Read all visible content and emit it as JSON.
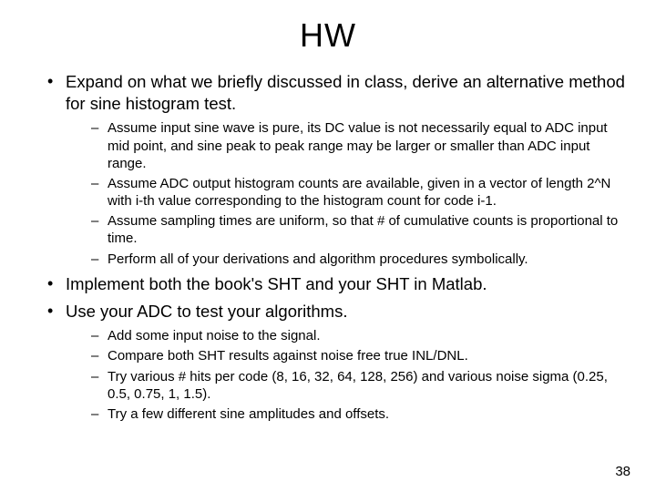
{
  "title": "HW",
  "bullets": [
    {
      "text": "Expand on what we briefly discussed in class, derive an alternative method for sine histogram test.",
      "sub": [
        "Assume input sine wave is pure, its DC value is not necessarily equal to ADC input mid point, and sine peak to peak range may be larger or smaller than ADC input range.",
        "Assume ADC output histogram counts are available, given in a vector of length 2^N with i-th value corresponding to the histogram count for code i-1.",
        "Assume sampling times are uniform, so that # of cumulative counts is proportional to time.",
        "Perform all of your derivations and algorithm procedures symbolically."
      ]
    },
    {
      "text": "Implement both the book's SHT and your SHT in Matlab.",
      "sub": []
    },
    {
      "text": "Use your ADC to test your algorithms.",
      "sub": [
        "Add some input noise to the signal.",
        "Compare both SHT results against noise free true INL/DNL.",
        "Try various # hits per code (8, 16, 32, 64, 128, 256) and various noise sigma (0.25, 0.5, 0.75, 1, 1.5).",
        "Try a few different sine amplitudes and offsets."
      ]
    }
  ],
  "page_number": "38",
  "colors": {
    "background": "#ffffff",
    "text": "#000000"
  }
}
